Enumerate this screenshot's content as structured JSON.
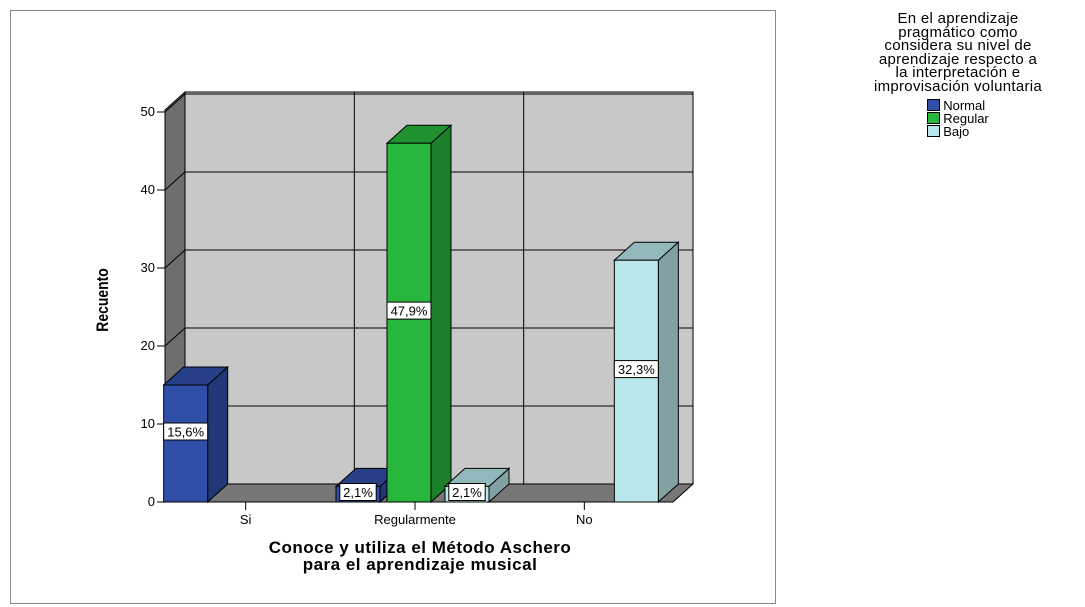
{
  "chart_data": {
    "type": "bar",
    "categories": [
      "Si",
      "Regularmente",
      "No"
    ],
    "series": [
      {
        "name": "Normal",
        "color": "#2f4fa8",
        "values": [
          15,
          2,
          null
        ],
        "labels": [
          "15,6%",
          "2,1%",
          ""
        ]
      },
      {
        "name": "Regular",
        "color": "#28b63c",
        "values": [
          null,
          46,
          null
        ],
        "labels": [
          "",
          "47,9%",
          ""
        ]
      },
      {
        "name": "Bajo",
        "color": "#b8e6ea",
        "values": [
          null,
          2,
          31
        ],
        "labels": [
          "",
          "2,1%",
          "32,3%"
        ]
      }
    ],
    "title": "",
    "xlabel": "Conoce y utiliza el Método Aschero\npara el aprendizaje musical",
    "ylabel": "Recuento",
    "ylim": [
      0,
      50
    ],
    "yticks": [
      "0",
      "10",
      "20",
      "30",
      "40",
      "50"
    ],
    "grid": true,
    "legend": {
      "position": "top-right",
      "title": "En el aprendizaje\npragmático como\nconsidera su nivel de\naprendizaje respecto a\nla interpretación e\nimprovisación voluntaria"
    }
  }
}
